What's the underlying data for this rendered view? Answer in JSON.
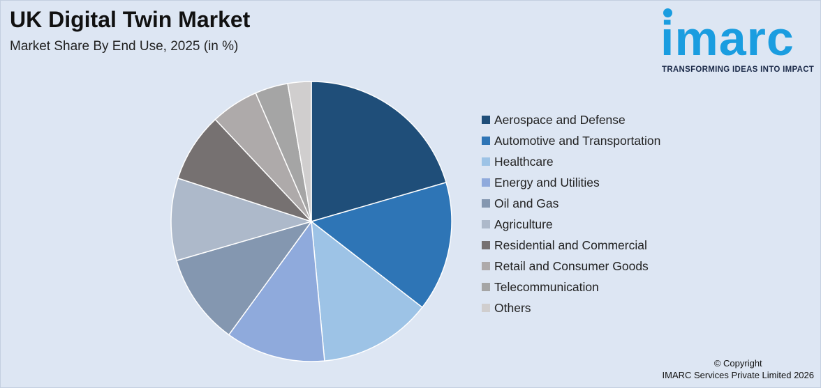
{
  "title": "UK Digital Twin Market",
  "subtitle": "Market Share By End Use, 2025 (in %)",
  "logo": {
    "word": "imarc",
    "tagline": "TRANSFORMING IDEAS INTO IMPACT",
    "color": "#1a9de0"
  },
  "copyright": {
    "line1": "© Copyright",
    "line2": "IMARC Services Private Limited 2026"
  },
  "chart_data": {
    "type": "pie",
    "title": "UK Digital Twin Market",
    "subtitle": "Market Share By End Use, 2025 (in %)",
    "legend_position": "right",
    "categories": [
      "Aerospace and Defense",
      "Automotive and Transportation",
      "Healthcare",
      "Energy and Utilities",
      "Oil and Gas",
      "Agriculture",
      "Residential and Commercial",
      "Retail and Consumer Goods",
      "Telecommunication",
      "Others"
    ],
    "values": [
      20.5,
      15.0,
      13.0,
      11.5,
      10.5,
      9.5,
      8.0,
      5.5,
      3.8,
      2.7
    ],
    "colors": [
      "#1f4e79",
      "#2e75b6",
      "#9dc3e6",
      "#8faadc",
      "#8497b0",
      "#adb9ca",
      "#767171",
      "#aeaaaa",
      "#a5a5a5",
      "#d0cece"
    ]
  }
}
